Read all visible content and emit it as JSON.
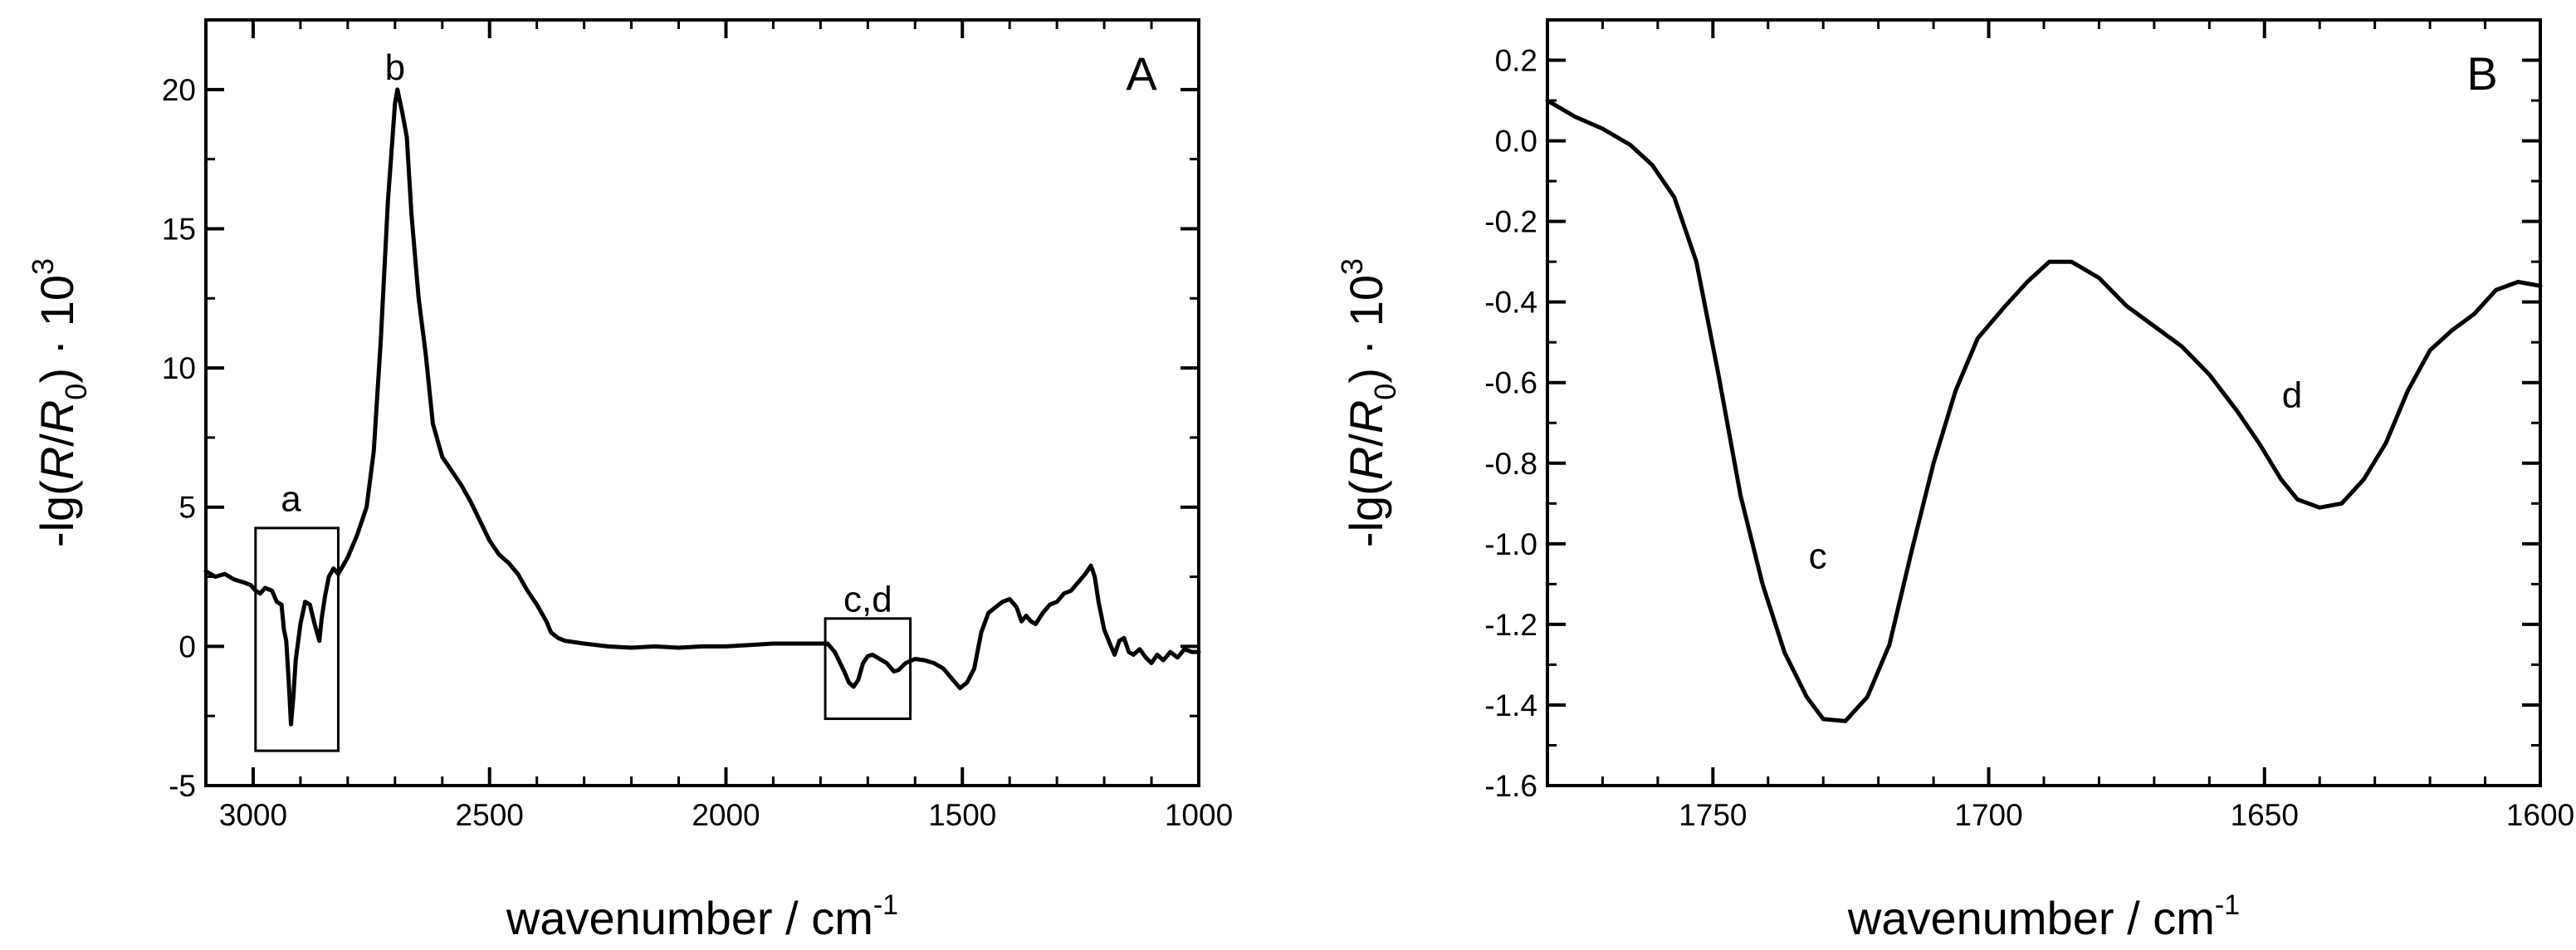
{
  "chart_data": [
    {
      "type": "line",
      "panel_label": "A",
      "xlabel": "wavenumber / cm",
      "xlabel_sup": "-1",
      "ylabel": {
        "prefix": "-lg(",
        "R": "R",
        "slash": "/",
        "R0": "R",
        "R0_sub": "0",
        "suffix": ") · 10",
        "sup": "3"
      },
      "xlim": [
        3100,
        1000
      ],
      "ylim": [
        -5,
        22.5
      ],
      "xticks": [
        3000,
        2500,
        2000,
        1500,
        1000
      ],
      "xtick_labels": [
        "3000",
        "2500",
        "2000",
        "1500",
        "1000"
      ],
      "yticks": [
        -5,
        0,
        5,
        10,
        15,
        20
      ],
      "ytick_labels": [
        "-5",
        "0",
        "5",
        "10",
        "15",
        "20"
      ],
      "x_minor_step": 100,
      "y_minor_step": 2.5,
      "series": [
        {
          "name": "spectrum",
          "points": [
            [
              3100,
              2.7
            ],
            [
              3080,
              2.5
            ],
            [
              3060,
              2.6
            ],
            [
              3040,
              2.4
            ],
            [
              3020,
              2.3
            ],
            [
              3005,
              2.2
            ],
            [
              2995,
              2.0
            ],
            [
              2985,
              1.9
            ],
            [
              2975,
              2.1
            ],
            [
              2960,
              2.0
            ],
            [
              2950,
              1.6
            ],
            [
              2940,
              1.5
            ],
            [
              2935,
              0.6
            ],
            [
              2930,
              0.2
            ],
            [
              2925,
              -1.2
            ],
            [
              2920,
              -2.8
            ],
            [
              2915,
              -1.8
            ],
            [
              2910,
              -0.5
            ],
            [
              2900,
              0.8
            ],
            [
              2890,
              1.6
            ],
            [
              2880,
              1.5
            ],
            [
              2870,
              0.8
            ],
            [
              2860,
              0.2
            ],
            [
              2855,
              1.0
            ],
            [
              2848,
              1.8
            ],
            [
              2840,
              2.5
            ],
            [
              2830,
              2.8
            ],
            [
              2820,
              2.6
            ],
            [
              2810,
              2.9
            ],
            [
              2800,
              3.2
            ],
            [
              2780,
              4.0
            ],
            [
              2760,
              5.0
            ],
            [
              2745,
              7.0
            ],
            [
              2730,
              11.0
            ],
            [
              2715,
              16.0
            ],
            [
              2700,
              19.5
            ],
            [
              2695,
              20.0
            ],
            [
              2685,
              19.2
            ],
            [
              2675,
              18.3
            ],
            [
              2665,
              15.5
            ],
            [
              2650,
              12.5
            ],
            [
              2635,
              10.5
            ],
            [
              2620,
              8.0
            ],
            [
              2600,
              6.8
            ],
            [
              2580,
              6.3
            ],
            [
              2560,
              5.8
            ],
            [
              2540,
              5.2
            ],
            [
              2520,
              4.5
            ],
            [
              2500,
              3.8
            ],
            [
              2480,
              3.3
            ],
            [
              2460,
              3.0
            ],
            [
              2440,
              2.6
            ],
            [
              2420,
              2.0
            ],
            [
              2400,
              1.5
            ],
            [
              2380,
              0.9
            ],
            [
              2370,
              0.5
            ],
            [
              2355,
              0.3
            ],
            [
              2340,
              0.2
            ],
            [
              2300,
              0.1
            ],
            [
              2250,
              0.0
            ],
            [
              2200,
              -0.05
            ],
            [
              2150,
              0.0
            ],
            [
              2100,
              -0.05
            ],
            [
              2050,
              0.0
            ],
            [
              2000,
              0.0
            ],
            [
              1950,
              0.05
            ],
            [
              1900,
              0.1
            ],
            [
              1850,
              0.1
            ],
            [
              1800,
              0.1
            ],
            [
              1785,
              0.1
            ],
            [
              1770,
              -0.2
            ],
            [
              1750,
              -0.9
            ],
            [
              1740,
              -1.3
            ],
            [
              1730,
              -1.45
            ],
            [
              1720,
              -1.2
            ],
            [
              1710,
              -0.6
            ],
            [
              1700,
              -0.35
            ],
            [
              1690,
              -0.3
            ],
            [
              1675,
              -0.45
            ],
            [
              1660,
              -0.6
            ],
            [
              1645,
              -0.9
            ],
            [
              1635,
              -0.85
            ],
            [
              1620,
              -0.6
            ],
            [
              1600,
              -0.45
            ],
            [
              1580,
              -0.5
            ],
            [
              1560,
              -0.6
            ],
            [
              1540,
              -0.8
            ],
            [
              1520,
              -1.2
            ],
            [
              1505,
              -1.5
            ],
            [
              1490,
              -1.3
            ],
            [
              1475,
              -0.8
            ],
            [
              1460,
              0.5
            ],
            [
              1445,
              1.2
            ],
            [
              1430,
              1.4
            ],
            [
              1415,
              1.6
            ],
            [
              1400,
              1.7
            ],
            [
              1385,
              1.4
            ],
            [
              1375,
              0.9
            ],
            [
              1365,
              1.1
            ],
            [
              1355,
              0.9
            ],
            [
              1345,
              0.8
            ],
            [
              1330,
              1.2
            ],
            [
              1315,
              1.5
            ],
            [
              1300,
              1.6
            ],
            [
              1285,
              1.9
            ],
            [
              1270,
              2.0
            ],
            [
              1255,
              2.3
            ],
            [
              1240,
              2.6
            ],
            [
              1228,
              2.9
            ],
            [
              1220,
              2.5
            ],
            [
              1212,
              1.6
            ],
            [
              1200,
              0.6
            ],
            [
              1188,
              0.1
            ],
            [
              1178,
              -0.3
            ],
            [
              1168,
              0.2
            ],
            [
              1158,
              0.3
            ],
            [
              1148,
              -0.2
            ],
            [
              1138,
              -0.3
            ],
            [
              1125,
              -0.1
            ],
            [
              1112,
              -0.4
            ],
            [
              1100,
              -0.6
            ],
            [
              1088,
              -0.3
            ],
            [
              1075,
              -0.5
            ],
            [
              1060,
              -0.2
            ],
            [
              1045,
              -0.4
            ],
            [
              1030,
              -0.1
            ],
            [
              1015,
              -0.2
            ],
            [
              1000,
              -0.2
            ]
          ]
        }
      ],
      "annotations": [
        {
          "text": "a",
          "x": 2920,
          "y": 5.3
        },
        {
          "text": "b",
          "x": 2700,
          "y": 20.8
        },
        {
          "text": "c,d",
          "x": 1700,
          "y": 1.7
        }
      ],
      "boxes": [
        {
          "x1": 2995,
          "x2": 2820,
          "y1": -3.75,
          "y2": 4.25
        },
        {
          "x1": 1790,
          "x2": 1610,
          "y1": -2.6,
          "y2": 1.0
        }
      ]
    },
    {
      "type": "line",
      "panel_label": "B",
      "xlabel": "wavenumber / cm",
      "xlabel_sup": "-1",
      "ylabel": {
        "prefix": "-lg(",
        "R": "R",
        "slash": "/",
        "R0": "R",
        "R0_sub": "0",
        "suffix": ") · 10",
        "sup": "3"
      },
      "xlim": [
        1780,
        1600
      ],
      "ylim": [
        -1.6,
        0.3
      ],
      "xticks": [
        1750,
        1700,
        1650,
        1600
      ],
      "xtick_labels": [
        "1750",
        "1700",
        "1650",
        "1600"
      ],
      "yticks": [
        -1.6,
        -1.4,
        -1.2,
        -1.0,
        -0.8,
        -0.6,
        -0.4,
        -0.2,
        0.0,
        0.2
      ],
      "ytick_labels": [
        "-1.6",
        "-1.4",
        "-1.2",
        "-1.0",
        "-0.8",
        "-0.6",
        "-0.4",
        "-0.2",
        "0.0",
        "0.2"
      ],
      "x_minor_step": 10,
      "y_minor_step": 0.1,
      "series": [
        {
          "name": "spectrum",
          "points": [
            [
              1780,
              0.1
            ],
            [
              1775,
              0.06
            ],
            [
              1770,
              0.03
            ],
            [
              1765,
              -0.01
            ],
            [
              1761,
              -0.06
            ],
            [
              1757,
              -0.14
            ],
            [
              1753,
              -0.3
            ],
            [
              1749,
              -0.58
            ],
            [
              1745,
              -0.88
            ],
            [
              1741,
              -1.1
            ],
            [
              1737,
              -1.27
            ],
            [
              1733,
              -1.38
            ],
            [
              1730,
              -1.435
            ],
            [
              1726,
              -1.44
            ],
            [
              1722,
              -1.38
            ],
            [
              1718,
              -1.25
            ],
            [
              1714,
              -1.02
            ],
            [
              1710,
              -0.8
            ],
            [
              1706,
              -0.62
            ],
            [
              1702,
              -0.49
            ],
            [
              1697,
              -0.41
            ],
            [
              1693,
              -0.35
            ],
            [
              1689,
              -0.3
            ],
            [
              1685,
              -0.3
            ],
            [
              1680,
              -0.34
            ],
            [
              1675,
              -0.41
            ],
            [
              1670,
              -0.46
            ],
            [
              1665,
              -0.51
            ],
            [
              1660,
              -0.58
            ],
            [
              1655,
              -0.67
            ],
            [
              1651,
              -0.75
            ],
            [
              1647,
              -0.84
            ],
            [
              1644,
              -0.89
            ],
            [
              1640,
              -0.91
            ],
            [
              1636,
              -0.9
            ],
            [
              1632,
              -0.84
            ],
            [
              1628,
              -0.75
            ],
            [
              1624,
              -0.62
            ],
            [
              1620,
              -0.52
            ],
            [
              1616,
              -0.47
            ],
            [
              1612,
              -0.43
            ],
            [
              1608,
              -0.37
            ],
            [
              1604,
              -0.35
            ],
            [
              1600,
              -0.36
            ]
          ]
        }
      ],
      "annotations": [
        {
          "text": "c",
          "x": 1731,
          "y": -1.03
        },
        {
          "text": "d",
          "x": 1645,
          "y": -0.63
        }
      ],
      "boxes": []
    }
  ]
}
